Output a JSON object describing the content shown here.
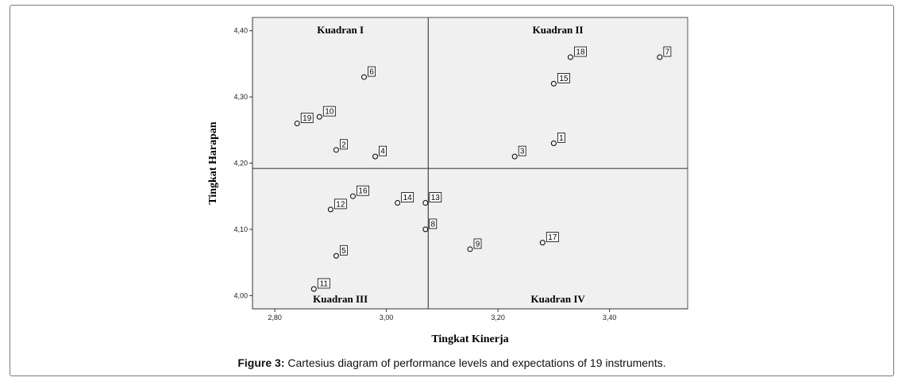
{
  "chart_data": {
    "type": "scatter",
    "xlabel": "Tingkat Kinerja",
    "ylabel": "Tingkat Harapan",
    "xlim": [
      2.76,
      3.54
    ],
    "ylim": [
      3.98,
      4.42
    ],
    "x_ticks": [
      2.8,
      3.0,
      3.2,
      3.4
    ],
    "x_tick_labels": [
      "2,80",
      "3,00",
      "3,20",
      "3,40"
    ],
    "y_ticks": [
      4.0,
      4.1,
      4.2,
      4.3,
      4.4
    ],
    "y_tick_labels": [
      "4,00",
      "4,10",
      "4,20",
      "4,30",
      "4,40"
    ],
    "grid": false,
    "background": "#f0f0f0",
    "point_color": "#000000",
    "reference_lines": {
      "x": 3.075,
      "y": 4.192
    },
    "quadrants": [
      {
        "label": "Kuadran I",
        "position": "top-left"
      },
      {
        "label": "Kuadran II",
        "position": "top-right"
      },
      {
        "label": "Kuadran III",
        "position": "bottom-left"
      },
      {
        "label": "Kuadran IV",
        "position": "bottom-right"
      }
    ],
    "points": [
      {
        "label": "1",
        "x": 3.3,
        "y": 4.23
      },
      {
        "label": "2",
        "x": 2.91,
        "y": 4.22
      },
      {
        "label": "3",
        "x": 3.23,
        "y": 4.21
      },
      {
        "label": "4",
        "x": 2.98,
        "y": 4.21
      },
      {
        "label": "5",
        "x": 2.91,
        "y": 4.06
      },
      {
        "label": "6",
        "x": 2.96,
        "y": 4.33
      },
      {
        "label": "7",
        "x": 3.49,
        "y": 4.36
      },
      {
        "label": "8",
        "x": 3.07,
        "y": 4.1
      },
      {
        "label": "9",
        "x": 3.15,
        "y": 4.07
      },
      {
        "label": "10",
        "x": 2.88,
        "y": 4.27
      },
      {
        "label": "11",
        "x": 2.87,
        "y": 4.01
      },
      {
        "label": "12",
        "x": 2.9,
        "y": 4.13
      },
      {
        "label": "13",
        "x": 3.07,
        "y": 4.14
      },
      {
        "label": "14",
        "x": 3.02,
        "y": 4.14
      },
      {
        "label": "15",
        "x": 3.3,
        "y": 4.32
      },
      {
        "label": "16",
        "x": 2.94,
        "y": 4.15
      },
      {
        "label": "17",
        "x": 3.28,
        "y": 4.08
      },
      {
        "label": "18",
        "x": 3.33,
        "y": 4.36
      },
      {
        "label": "19",
        "x": 2.84,
        "y": 4.26
      }
    ]
  },
  "caption": {
    "prefix": "Figure 3:",
    "text": " Cartesius diagram of performance levels and expectations of 19 instruments."
  }
}
